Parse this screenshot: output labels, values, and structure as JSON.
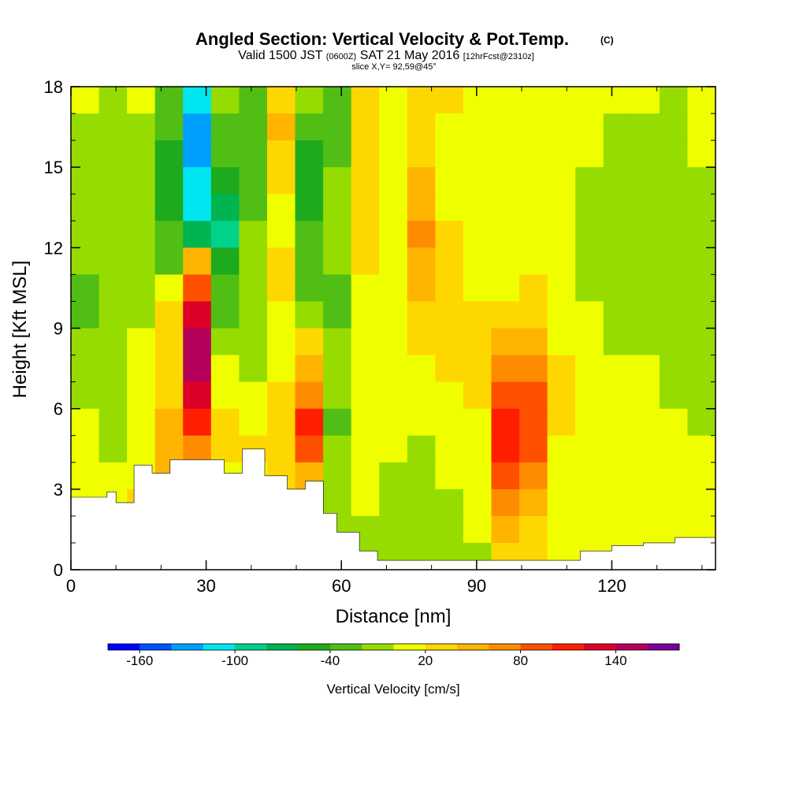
{
  "chart_data": {
    "type": "heatmap",
    "title": "Angled Section: Vertical Velocity & Pot.Temp.",
    "title_suffix": "(C)",
    "subtitle": {
      "a": "Valid 1500 JST",
      "b": "(0600Z)",
      "c": "SAT 21 May 2016",
      "d": "[12hrFcst@2310z]"
    },
    "slice_label": "slice X,Y= 92,59@45°",
    "xlabel": "Distance [nm]",
    "ylabel": "Height [Kft MSL]",
    "xlim": [
      0,
      143
    ],
    "ylim": [
      0,
      18
    ],
    "x_ticks": [
      "0",
      "30",
      "60",
      "90",
      "120"
    ],
    "x_tick_values": [
      0,
      30,
      60,
      90,
      120
    ],
    "y_ticks": [
      "0",
      "3",
      "6",
      "9",
      "12",
      "15",
      "18"
    ],
    "y_tick_values": [
      0,
      3,
      6,
      9,
      12,
      15,
      18
    ],
    "colorbar": {
      "label": "Vertical Velocity [cm/s]",
      "tick_labels": [
        "-160",
        "-100",
        "-40",
        "20",
        "80",
        "140"
      ],
      "tick_values": [
        -160,
        -100,
        -40,
        20,
        80,
        140
      ],
      "levels": [
        -180,
        -160,
        -140,
        -120,
        -100,
        -80,
        -60,
        -40,
        -20,
        0,
        20,
        40,
        60,
        80,
        100,
        120,
        140,
        160,
        180
      ],
      "colors": [
        "#0000ff",
        "#0050ff",
        "#00a0ff",
        "#00e6f0",
        "#00d28c",
        "#00b450",
        "#1eaa1e",
        "#50be14",
        "#96dc00",
        "#f0ff00",
        "#ffd700",
        "#ffb400",
        "#ff8c00",
        "#ff5000",
        "#ff1e00",
        "#dc0028",
        "#b4005a",
        "#780096"
      ]
    },
    "cells_legend": "cells hold vertical velocity in cm/s sampled every 6.5 nm (columns) from 0.75 to 17.25 kft (rows, top to bottom)",
    "cells": [
      [
        10,
        -10,
        0,
        -40,
        -120,
        -20,
        -40,
        30,
        -20,
        -40,
        20,
        0,
        30,
        20,
        10,
        0,
        0,
        10,
        0,
        0,
        0,
        -20,
        0
      ],
      [
        -10,
        -20,
        -10,
        -40,
        -140,
        -30,
        -40,
        40,
        -40,
        -40,
        20,
        0,
        20,
        10,
        10,
        0,
        0,
        10,
        0,
        -10,
        -10,
        -20,
        0
      ],
      [
        -10,
        -20,
        -20,
        -50,
        -130,
        -40,
        -40,
        30,
        -50,
        -30,
        20,
        10,
        20,
        10,
        10,
        0,
        0,
        0,
        0,
        -10,
        -10,
        -20,
        0
      ],
      [
        -20,
        -20,
        -20,
        -60,
        -120,
        -60,
        -30,
        20,
        -50,
        -20,
        30,
        10,
        40,
        10,
        10,
        10,
        0,
        0,
        -10,
        -10,
        -10,
        -20,
        -10
      ],
      [
        -20,
        -20,
        -20,
        -50,
        -110,
        -80,
        -30,
        10,
        -50,
        -10,
        30,
        10,
        50,
        10,
        10,
        10,
        0,
        0,
        -10,
        -10,
        -10,
        -20,
        -10
      ],
      [
        -20,
        -20,
        -10,
        -40,
        -80,
        -90,
        -20,
        10,
        -40,
        -10,
        20,
        10,
        60,
        20,
        0,
        10,
        0,
        0,
        -10,
        -10,
        -10,
        -20,
        -20
      ],
      [
        -20,
        -20,
        -10,
        -30,
        40,
        -60,
        -20,
        20,
        -40,
        -20,
        20,
        0,
        40,
        20,
        0,
        10,
        0,
        0,
        -10,
        -10,
        -10,
        -20,
        -20
      ],
      [
        -30,
        -20,
        -10,
        0,
        90,
        -40,
        -20,
        20,
        -30,
        -30,
        10,
        0,
        40,
        20,
        10,
        10,
        20,
        10,
        -10,
        -10,
        -20,
        -20,
        -20
      ],
      [
        -30,
        -20,
        -10,
        20,
        130,
        -30,
        -20,
        10,
        -10,
        -30,
        10,
        0,
        30,
        20,
        20,
        20,
        30,
        10,
        0,
        -10,
        -20,
        -20,
        -20
      ],
      [
        -20,
        -20,
        0,
        20,
        150,
        -10,
        -20,
        10,
        20,
        -20,
        10,
        0,
        20,
        20,
        20,
        40,
        40,
        10,
        0,
        -10,
        -10,
        -20,
        -20
      ],
      [
        -20,
        -10,
        0,
        20,
        150,
        0,
        -10,
        10,
        40,
        -10,
        10,
        0,
        10,
        20,
        20,
        60,
        70,
        20,
        0,
        0,
        0,
        -10,
        -20
      ],
      [
        -10,
        -10,
        0,
        30,
        130,
        10,
        0,
        20,
        70,
        -20,
        0,
        0,
        0,
        10,
        20,
        90,
        80,
        20,
        10,
        0,
        0,
        -10,
        -10
      ],
      [
        0,
        -10,
        10,
        40,
        100,
        20,
        10,
        20,
        100,
        -30,
        0,
        0,
        0,
        10,
        10,
        110,
        90,
        20,
        10,
        0,
        0,
        0,
        -10
      ],
      [
        0,
        -10,
        10,
        50,
        60,
        20,
        20,
        30,
        80,
        -20,
        0,
        0,
        -10,
        10,
        10,
        110,
        80,
        10,
        10,
        10,
        0,
        0,
        0
      ],
      [
        10,
        0,
        10,
        40,
        20,
        10,
        10,
        30,
        50,
        -20,
        0,
        -10,
        -10,
        0,
        10,
        90,
        60,
        10,
        10,
        10,
        10,
        0,
        0
      ],
      [
        10,
        0,
        20,
        30,
        10,
        10,
        10,
        20,
        20,
        -20,
        0,
        -20,
        -20,
        -10,
        0,
        60,
        40,
        10,
        10,
        10,
        10,
        10,
        0
      ],
      [
        10,
        0,
        10,
        10,
        10,
        0,
        0,
        10,
        10,
        -20,
        -10,
        -20,
        -20,
        -10,
        0,
        40,
        30,
        0,
        10,
        10,
        10,
        10,
        10
      ],
      [
        10,
        0,
        10,
        10,
        10,
        0,
        0,
        10,
        0,
        -10,
        -10,
        -20,
        -20,
        -10,
        -10,
        20,
        20,
        0,
        10,
        10,
        10,
        10,
        10
      ]
    ],
    "terrain_kft": [
      2.7,
      2.7,
      2.9,
      2.5,
      3.9,
      3.6,
      4.1,
      4.1,
      3.6,
      4.5,
      3.5,
      3.0,
      3.3,
      2.1,
      1.4,
      0.7,
      0.35,
      0.35,
      0.35,
      0.35,
      0.35,
      0.35,
      0.7,
      0.9,
      1.0,
      1.2,
      1.3
    ],
    "terrain_x_nm": [
      0,
      5,
      8,
      10,
      14,
      18,
      22,
      28,
      34,
      38,
      43,
      48,
      52,
      56,
      59,
      64,
      68,
      75,
      82,
      90,
      98,
      105,
      113,
      120,
      127,
      134,
      143
    ]
  }
}
